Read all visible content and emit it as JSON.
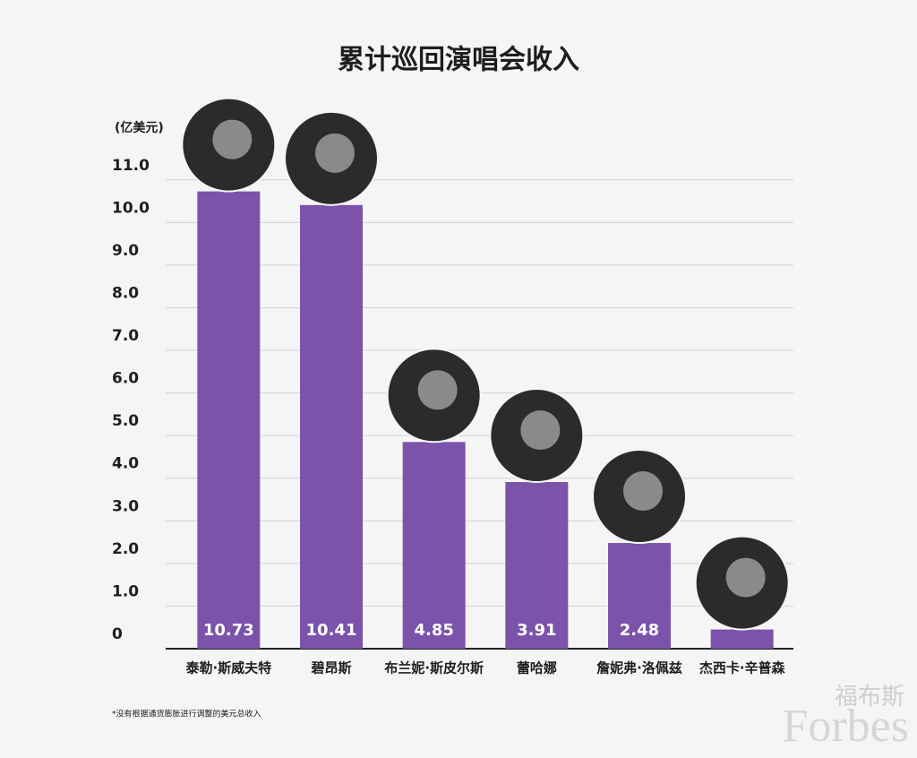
{
  "chart_data": {
    "type": "bar",
    "title": "累计巡回演唱会收入",
    "y_label": "(亿美元)",
    "categories": [
      "泰勒·斯威夫特",
      "碧昂斯",
      "布兰妮·斯皮尔斯",
      "蕾哈娜",
      "詹妮弗·洛佩兹",
      "杰西卡·辛普森"
    ],
    "values": [
      10.73,
      10.41,
      4.85,
      3.91,
      2.48,
      0.45
    ],
    "color": "#7b53ab",
    "ylim": [
      0,
      11.5
    ],
    "yticks": [
      0,
      {
        "value": 1,
        "label": "1.0"
      },
      {
        "value": 2,
        "label": "2.0"
      },
      {
        "value": 3,
        "label": "3.0"
      },
      {
        "value": 4,
        "label": "4.0"
      },
      {
        "value": 5,
        "label": "5.0"
      },
      {
        "value": 6,
        "label": "6.0"
      },
      {
        "value": 7,
        "label": "7.0"
      },
      {
        "value": 8,
        "label": "8.0"
      },
      {
        "value": 9,
        "label": "9.0"
      },
      {
        "value": 10,
        "label": "10.0"
      },
      {
        "value": 11,
        "label": "11.0"
      }
    ],
    "grid": true,
    "note": "*没有根据通货膨胀进行调整的美元总收入",
    "watermark": "福布斯",
    "watermark_brand": "Forbes"
  }
}
